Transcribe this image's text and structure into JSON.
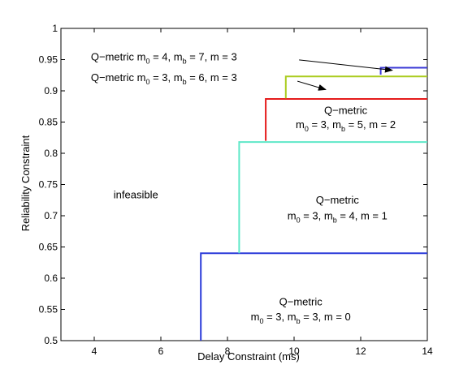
{
  "chart_data": {
    "type": "line",
    "xlabel": "Delay Constraint (ms)",
    "ylabel": "Reliability Constraint",
    "xlim": [
      3,
      14
    ],
    "ylim": [
      0.5,
      1
    ],
    "x_ticks": [
      4,
      6,
      8,
      10,
      12,
      14
    ],
    "y_ticks": [
      0.5,
      0.55,
      0.6,
      0.65,
      0.7,
      0.75,
      0.8,
      0.85,
      0.9,
      0.95,
      1
    ],
    "x_tick_labels": [
      "4",
      "6",
      "8",
      "10",
      "12",
      "14"
    ],
    "y_tick_labels": [
      "0.5",
      "0.55",
      "0.6",
      "0.65",
      "0.7",
      "0.75",
      "0.8",
      "0.85",
      "0.9",
      "0.95",
      "1"
    ],
    "grid": false,
    "series": [
      {
        "color": "#2b3bd9",
        "points": [
          [
            7.2,
            0.5
          ],
          [
            7.2,
            0.64
          ],
          [
            14,
            0.64
          ]
        ]
      },
      {
        "color": "#5ee8c8",
        "points": [
          [
            8.35,
            0.64
          ],
          [
            8.35,
            0.818
          ],
          [
            14,
            0.818
          ]
        ]
      },
      {
        "color": "#e51b1b",
        "points": [
          [
            9.15,
            0.82
          ],
          [
            9.15,
            0.887
          ],
          [
            14,
            0.887
          ]
        ]
      },
      {
        "color": "#aacc1e",
        "points": [
          [
            9.75,
            0.888
          ],
          [
            9.75,
            0.923
          ],
          [
            14,
            0.923
          ]
        ]
      },
      {
        "color": "#3a38d6",
        "points": [
          [
            12.6,
            0.926
          ],
          [
            12.6,
            0.937
          ],
          [
            14,
            0.937
          ]
        ]
      }
    ],
    "annotations": [
      {
        "id": "a_m7",
        "main": "Q−metric   m",
        "sub0": "0",
        "mid0": " = 4, m",
        "sub1": "b",
        "tail": " = 7, m = 3",
        "x": 3.9,
        "y": 0.949,
        "anchor": "start",
        "arrow": {
          "from": [
            10.15,
            0.9495
          ],
          "to": [
            12.95,
            0.933
          ]
        }
      },
      {
        "id": "a_m6",
        "main": "Q−metric   m",
        "sub0": "0",
        "mid0": " = 3, m",
        "sub1": "b",
        "tail": " = 6, m = 3",
        "x": 3.9,
        "y": 0.9155,
        "anchor": "start",
        "arrow": {
          "from": [
            10.1,
            0.9155
          ],
          "to": [
            10.95,
            0.902
          ]
        }
      },
      {
        "id": "a_m5",
        "title": "Q−metric",
        "main": "m",
        "sub0": "0",
        "mid0": " = 3, m",
        "sub1": "b",
        "tail": " = 5, m = 2",
        "x": 11.55,
        "y": 0.863,
        "y2": 0.84,
        "anchor": "middle"
      },
      {
        "id": "a_m4",
        "title": "Q−metric",
        "main": "m",
        "sub0": "0",
        "mid0": " = 3, m",
        "sub1": "b",
        "tail": " = 4, m = 1",
        "x": 11.3,
        "y": 0.7195,
        "y2": 0.694,
        "anchor": "middle"
      },
      {
        "id": "a_m3",
        "title": "Q−metric",
        "main": "m",
        "sub0": "0",
        "mid0": " = 3, m",
        "sub1": "b",
        "tail": " = 3, m = 0",
        "x": 10.2,
        "y": 0.5565,
        "y2": 0.5325,
        "anchor": "middle"
      }
    ],
    "region_label": {
      "text": "infeasible",
      "x": 5.25,
      "y": 0.728
    }
  }
}
